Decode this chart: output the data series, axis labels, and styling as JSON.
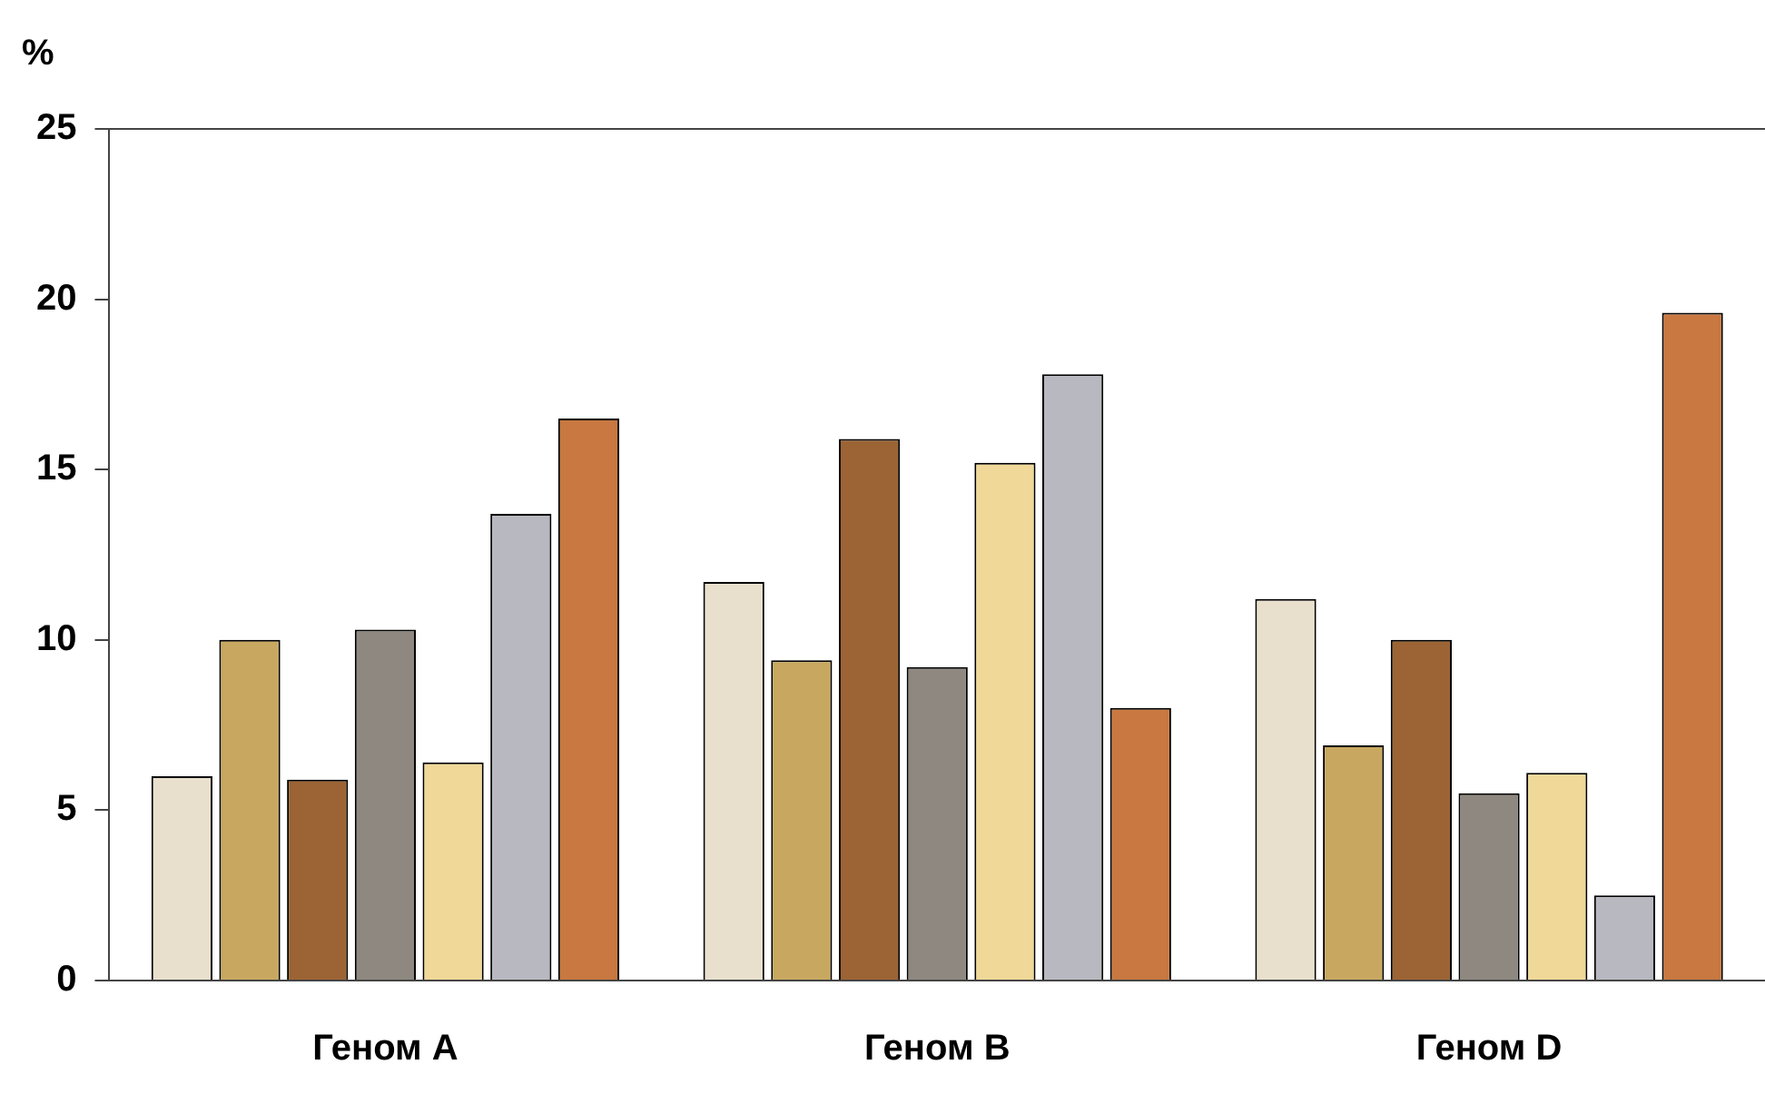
{
  "chart_data": {
    "type": "bar",
    "ylabel": "%",
    "categories": [
      "Геном A",
      "Геном B",
      "Геном D"
    ],
    "series": [
      {
        "color": "#e8e0cc",
        "values": [
          6.0,
          11.7,
          11.2
        ]
      },
      {
        "color": "#c8a860",
        "values": [
          10.0,
          9.4,
          6.9
        ]
      },
      {
        "color": "#9c6434",
        "values": [
          5.9,
          15.9,
          10.0
        ]
      },
      {
        "color": "#8e8880",
        "values": [
          10.3,
          9.2,
          5.5
        ]
      },
      {
        "color": "#f0d898",
        "values": [
          6.4,
          15.2,
          6.1
        ]
      },
      {
        "color": "#b8b8c0",
        "values": [
          13.7,
          17.8,
          2.5
        ]
      },
      {
        "color": "#c87840",
        "values": [
          16.5,
          8.0,
          19.6
        ]
      }
    ],
    "ylim": [
      0,
      25
    ],
    "yticks": [
      0,
      5,
      10,
      15,
      20,
      25
    ],
    "grid": false,
    "legend": false
  }
}
